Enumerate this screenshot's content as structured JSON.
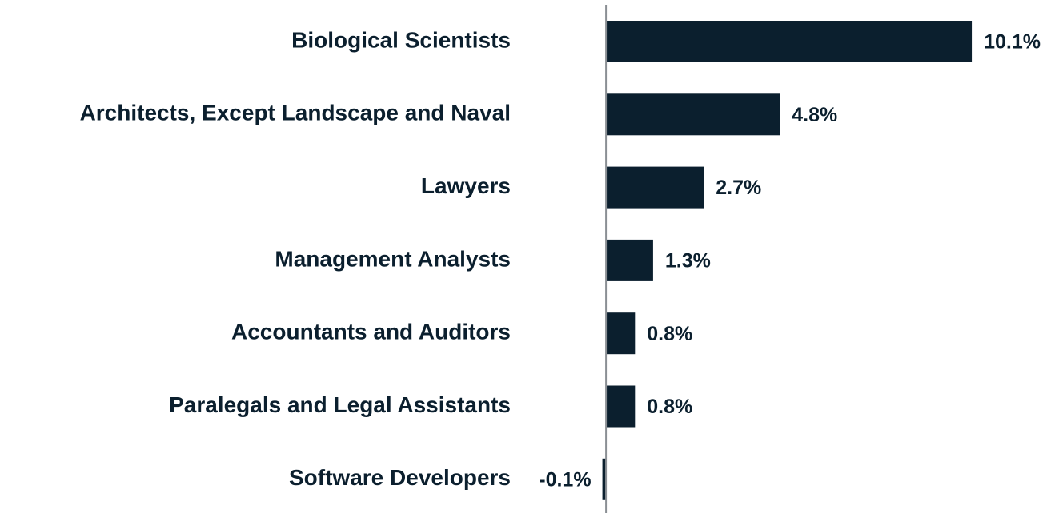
{
  "chart_data": {
    "type": "barh",
    "categories": [
      "Biological Scientists",
      "Architects, Except Landscape and Naval",
      "Lawyers",
      "Management Analysts",
      "Accountants and Auditors",
      "Paralegals and Legal Assistants",
      "Software Developers"
    ],
    "values": [
      10.1,
      4.8,
      2.7,
      1.3,
      0.8,
      0.8,
      -0.1
    ],
    "value_labels": [
      "10.1%",
      "4.8%",
      "2.7%",
      "1.3%",
      "0.8%",
      "0.8%",
      "-0.1%"
    ],
    "color": "#0b1f2e",
    "xlim": [
      -0.4,
      11
    ]
  }
}
